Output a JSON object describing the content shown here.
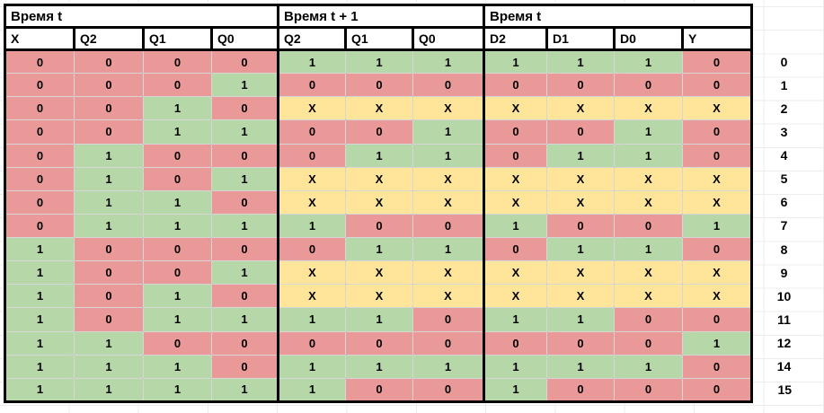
{
  "value_colors": {
    "0": "#ea9999",
    "1": "#b6d7a8",
    "X": "#ffe599"
  },
  "border_color": "#000000",
  "blocks": [
    {
      "key": "t",
      "title": "Время t",
      "columns": [
        "X",
        "Q2",
        "Q1",
        "Q0"
      ]
    },
    {
      "key": "t1",
      "title": "Время t + 1",
      "columns": [
        "Q2",
        "Q1",
        "Q0"
      ]
    },
    {
      "key": "d",
      "title": "Время t",
      "columns": [
        "D2",
        "D1",
        "D0",
        "Y"
      ]
    }
  ],
  "rows": [
    {
      "label": "0",
      "t": [
        "0",
        "0",
        "0",
        "0"
      ],
      "t1": [
        "1",
        "1",
        "1"
      ],
      "d": [
        "1",
        "1",
        "1",
        "0"
      ]
    },
    {
      "label": "1",
      "t": [
        "0",
        "0",
        "0",
        "1"
      ],
      "t1": [
        "0",
        "0",
        "0"
      ],
      "d": [
        "0",
        "0",
        "0",
        "0"
      ]
    },
    {
      "label": "2",
      "t": [
        "0",
        "0",
        "1",
        "0"
      ],
      "t1": [
        "X",
        "X",
        "X"
      ],
      "d": [
        "X",
        "X",
        "X",
        "X"
      ]
    },
    {
      "label": "3",
      "t": [
        "0",
        "0",
        "1",
        "1"
      ],
      "t1": [
        "0",
        "0",
        "1"
      ],
      "d": [
        "0",
        "0",
        "1",
        "0"
      ]
    },
    {
      "label": "4",
      "t": [
        "0",
        "1",
        "0",
        "0"
      ],
      "t1": [
        "0",
        "1",
        "1"
      ],
      "d": [
        "0",
        "1",
        "1",
        "0"
      ]
    },
    {
      "label": "5",
      "t": [
        "0",
        "1",
        "0",
        "1"
      ],
      "t1": [
        "X",
        "X",
        "X"
      ],
      "d": [
        "X",
        "X",
        "X",
        "X"
      ]
    },
    {
      "label": "6",
      "t": [
        "0",
        "1",
        "1",
        "0"
      ],
      "t1": [
        "X",
        "X",
        "X"
      ],
      "d": [
        "X",
        "X",
        "X",
        "X"
      ]
    },
    {
      "label": "7",
      "t": [
        "0",
        "1",
        "1",
        "1"
      ],
      "t1": [
        "1",
        "0",
        "0"
      ],
      "d": [
        "1",
        "0",
        "0",
        "1"
      ]
    },
    {
      "label": "8",
      "t": [
        "1",
        "0",
        "0",
        "0"
      ],
      "t1": [
        "0",
        "1",
        "1"
      ],
      "d": [
        "0",
        "1",
        "1",
        "0"
      ]
    },
    {
      "label": "9",
      "t": [
        "1",
        "0",
        "0",
        "1"
      ],
      "t1": [
        "X",
        "X",
        "X"
      ],
      "d": [
        "X",
        "X",
        "X",
        "X"
      ]
    },
    {
      "label": "10",
      "t": [
        "1",
        "0",
        "1",
        "0"
      ],
      "t1": [
        "X",
        "X",
        "X"
      ],
      "d": [
        "X",
        "X",
        "X",
        "X"
      ]
    },
    {
      "label": "11",
      "t": [
        "1",
        "0",
        "1",
        "1"
      ],
      "t1": [
        "1",
        "1",
        "0"
      ],
      "d": [
        "1",
        "1",
        "0",
        "0"
      ]
    },
    {
      "label": "12",
      "t": [
        "1",
        "1",
        "0",
        "0"
      ],
      "t1": [
        "0",
        "0",
        "0"
      ],
      "d": [
        "0",
        "0",
        "0",
        "1"
      ]
    },
    {
      "label": "14",
      "t": [
        "1",
        "1",
        "1",
        "0"
      ],
      "t1": [
        "1",
        "1",
        "1"
      ],
      "d": [
        "1",
        "1",
        "1",
        "0"
      ]
    },
    {
      "label": "15",
      "t": [
        "1",
        "1",
        "1",
        "1"
      ],
      "t1": [
        "1",
        "0",
        "0"
      ],
      "d": [
        "1",
        "0",
        "0",
        "0"
      ]
    }
  ]
}
